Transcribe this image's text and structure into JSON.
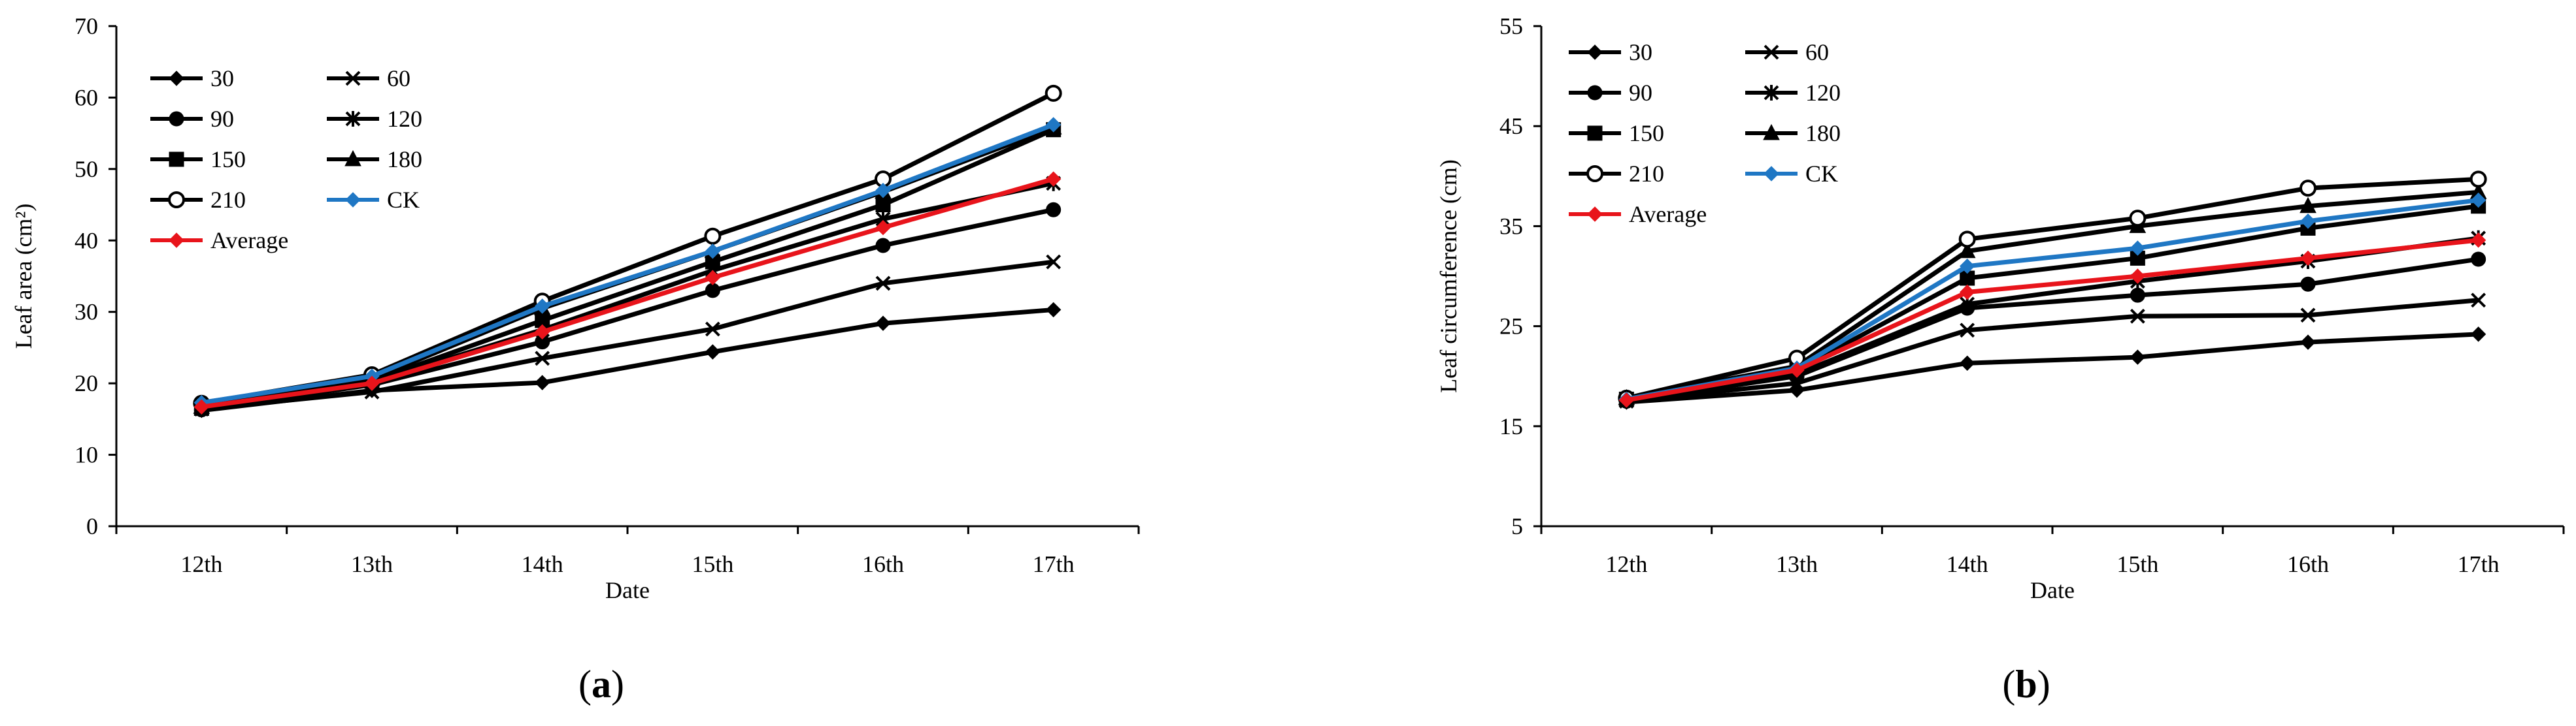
{
  "chart_data": [
    {
      "type": "line",
      "panel_label": "(a)",
      "xlabel": "Date",
      "ylabel": "Leaf area (cm²)",
      "categories": [
        "12th",
        "13th",
        "14th",
        "15th",
        "16th",
        "17th"
      ],
      "ylim": [
        0,
        70
      ],
      "yticks": [
        0,
        10,
        20,
        30,
        40,
        50,
        60,
        70
      ],
      "grid": false,
      "legend": "top-left",
      "series": [
        {
          "name": "30",
          "marker": "diamond",
          "color": "#000000",
          "values": [
            16.2,
            19.0,
            20.1,
            24.4,
            28.4,
            30.3
          ]
        },
        {
          "name": "60",
          "marker": "x",
          "color": "#000000",
          "values": [
            16.4,
            18.8,
            23.5,
            27.6,
            34.0,
            37.0
          ]
        },
        {
          "name": "90",
          "marker": "circle",
          "color": "#000000",
          "values": [
            16.3,
            19.8,
            25.8,
            33.0,
            39.3,
            44.3
          ]
        },
        {
          "name": "120",
          "marker": "star",
          "color": "#000000",
          "values": [
            16.5,
            20.2,
            27.5,
            35.8,
            43.0,
            48.0
          ]
        },
        {
          "name": "150",
          "marker": "square",
          "color": "#000000",
          "values": [
            16.5,
            20.3,
            28.8,
            37.0,
            45.0,
            55.5
          ]
        },
        {
          "name": "180",
          "marker": "triangle",
          "color": "#000000",
          "values": [
            16.7,
            20.6,
            30.5,
            38.5,
            46.8,
            55.8
          ]
        },
        {
          "name": "210",
          "marker": "ocircle",
          "color": "#000000",
          "values": [
            17.2,
            21.2,
            31.5,
            40.6,
            48.6,
            60.6
          ]
        },
        {
          "name": "CK",
          "marker": "diamond",
          "color": "#1f77c4",
          "values": [
            17.3,
            21.0,
            30.8,
            38.5,
            47.0,
            56.2
          ]
        },
        {
          "name": "Average",
          "marker": "diamond",
          "color": "#e8141b",
          "values": [
            16.7,
            20.0,
            27.2,
            34.8,
            41.8,
            48.6
          ]
        }
      ]
    },
    {
      "type": "line",
      "panel_label": "(b)",
      "xlabel": "Date",
      "ylabel": "Leaf circumference (cm)",
      "categories": [
        "12th",
        "13th",
        "14th",
        "15th",
        "16th",
        "17th"
      ],
      "ylim": [
        5,
        55
      ],
      "yticks": [
        5,
        15,
        25,
        35,
        45,
        55
      ],
      "grid": false,
      "legend": "top-left",
      "series": [
        {
          "name": "30",
          "marker": "diamond",
          "color": "#000000",
          "values": [
            17.4,
            18.6,
            21.3,
            21.9,
            23.4,
            24.2
          ]
        },
        {
          "name": "60",
          "marker": "x",
          "color": "#000000",
          "values": [
            17.5,
            19.3,
            24.6,
            26.0,
            26.1,
            27.6
          ]
        },
        {
          "name": "90",
          "marker": "circle",
          "color": "#000000",
          "values": [
            17.5,
            20.0,
            26.8,
            28.1,
            29.2,
            31.7
          ]
        },
        {
          "name": "120",
          "marker": "star",
          "color": "#000000",
          "values": [
            17.6,
            20.2,
            27.2,
            29.5,
            31.5,
            33.8
          ]
        },
        {
          "name": "150",
          "marker": "square",
          "color": "#000000",
          "values": [
            17.7,
            20.6,
            29.8,
            31.8,
            34.8,
            37.0
          ]
        },
        {
          "name": "180",
          "marker": "triangle",
          "color": "#000000",
          "values": [
            17.8,
            21.0,
            32.5,
            35.0,
            37.0,
            38.4
          ]
        },
        {
          "name": "210",
          "marker": "ocircle",
          "color": "#000000",
          "values": [
            17.8,
            21.8,
            33.7,
            35.8,
            38.8,
            39.7
          ]
        },
        {
          "name": "CK",
          "marker": "diamond",
          "color": "#1f77c4",
          "values": [
            17.7,
            20.8,
            31.0,
            32.8,
            35.5,
            37.6
          ]
        },
        {
          "name": "Average",
          "marker": "diamond",
          "color": "#e8141b",
          "values": [
            17.6,
            20.6,
            28.4,
            30.0,
            31.8,
            33.6
          ]
        }
      ]
    }
  ]
}
